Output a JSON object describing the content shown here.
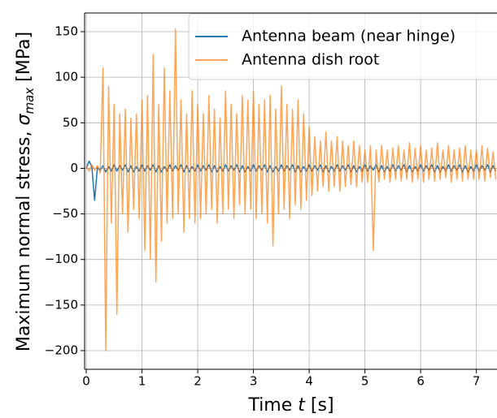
{
  "chart_data": {
    "type": "line",
    "xlabel": "Time ",
    "xlabel_symbol": "t",
    "xlabel_unit": " [s]",
    "ylabel": "Maximum normal stress, ",
    "ylabel_symbol": "σ",
    "ylabel_subscript": "max",
    "ylabel_unit": " [MPa]",
    "xlim": [
      -0.03,
      7.37
    ],
    "ylim": [
      -220.5,
      170.5
    ],
    "xticks": [
      0,
      1,
      2,
      3,
      4,
      5,
      6,
      7
    ],
    "yticks": [
      {
        "value": -200,
        "label": "−200"
      },
      {
        "value": -150,
        "label": "−150"
      },
      {
        "value": -100,
        "label": "−100"
      },
      {
        "value": -50,
        "label": "−50"
      },
      0,
      50,
      100,
      150
    ],
    "grid": true,
    "legend": "upper right",
    "x": [
      0,
      0.05,
      0.1,
      0.15,
      0.2,
      0.25,
      0.3,
      0.35,
      0.4,
      0.45,
      0.5,
      0.55,
      0.6,
      0.65,
      0.7,
      0.75,
      0.8,
      0.85,
      0.9,
      0.95,
      1,
      1.05,
      1.1,
      1.15,
      1.2,
      1.25,
      1.3,
      1.35,
      1.4,
      1.45,
      1.5,
      1.55,
      1.6,
      1.65,
      1.7,
      1.75,
      1.8,
      1.85,
      1.9,
      1.95,
      2,
      2.05,
      2.1,
      2.15,
      2.2,
      2.25,
      2.3,
      2.35,
      2.4,
      2.45,
      2.5,
      2.55,
      2.6,
      2.65,
      2.7,
      2.75,
      2.8,
      2.85,
      2.9,
      2.95,
      3,
      3.05,
      3.1,
      3.15,
      3.2,
      3.25,
      3.3,
      3.35,
      3.4,
      3.45,
      3.5,
      3.55,
      3.6,
      3.65,
      3.7,
      3.75,
      3.8,
      3.85,
      3.9,
      3.95,
      4,
      4.05,
      4.1,
      4.15,
      4.2,
      4.25,
      4.3,
      4.35,
      4.4,
      4.45,
      4.5,
      4.55,
      4.6,
      4.65,
      4.7,
      4.75,
      4.8,
      4.85,
      4.9,
      4.95,
      5,
      5.05,
      5.1,
      5.15,
      5.2,
      5.25,
      5.3,
      5.35,
      5.4,
      5.45,
      5.5,
      5.55,
      5.6,
      5.65,
      5.7,
      5.75,
      5.8,
      5.85,
      5.9,
      5.95,
      6,
      6.05,
      6.1,
      6.15,
      6.2,
      6.25,
      6.3,
      6.35,
      6.4,
      6.45,
      6.5,
      6.55,
      6.6,
      6.65,
      6.7,
      6.75,
      6.8,
      6.85,
      6.9,
      6.95,
      7,
      7.05,
      7.1,
      7.15,
      7.2,
      7.25,
      7.3,
      7.35
    ],
    "series": [
      {
        "name": "Antenna beam (near hinge)",
        "color": "#1f77b4",
        "values": [
          0,
          8,
          2,
          -35,
          1,
          -2,
          3,
          -4,
          2,
          -3,
          4,
          -3,
          3,
          -2,
          4,
          -4,
          3,
          -4,
          2,
          -3,
          4,
          -3,
          3,
          -2,
          4,
          -4,
          3,
          -4,
          2,
          -3,
          4,
          -3,
          3,
          -2,
          4,
          -4,
          3,
          -4,
          2,
          -3,
          4,
          -3,
          3,
          -2,
          4,
          -4,
          3,
          -4,
          2,
          -3,
          4,
          -3,
          3,
          -2,
          4,
          -4,
          3,
          -4,
          2,
          -3,
          4,
          -3,
          3,
          -2,
          4,
          -4,
          3,
          -4,
          2,
          -3,
          4,
          -3,
          3,
          -2,
          4,
          -4,
          3,
          -4,
          2,
          -3,
          4,
          -3,
          3,
          -2,
          4,
          -4,
          3,
          -4,
          2,
          -3,
          4,
          -3,
          3,
          -2,
          4,
          -4,
          3,
          -4,
          2,
          -3,
          4,
          -3,
          3,
          -2,
          4,
          -4,
          3,
          -4,
          2,
          -3,
          4,
          -3,
          3,
          -2,
          4,
          -4,
          3,
          -4,
          2,
          -3,
          4,
          -3,
          3,
          -2,
          4,
          -4,
          3,
          -4,
          2,
          -3,
          4,
          -3,
          3,
          -2,
          4,
          -4,
          3,
          -4,
          2,
          -3,
          4,
          -3,
          3,
          -2,
          4,
          -4,
          3,
          -3
        ]
      },
      {
        "name": "Antenna dish root",
        "color": "#ff7f0e",
        "values": [
          2,
          -3,
          4,
          -2,
          3,
          -5,
          110,
          -200,
          90,
          -60,
          70,
          -160,
          60,
          -50,
          65,
          -70,
          55,
          -45,
          60,
          -55,
          75,
          -90,
          80,
          -100,
          125,
          -125,
          70,
          -80,
          110,
          -60,
          85,
          -55,
          153,
          -50,
          75,
          -70,
          60,
          -55,
          85,
          -60,
          70,
          -55,
          60,
          -50,
          80,
          -45,
          65,
          -60,
          55,
          -50,
          85,
          -45,
          70,
          -55,
          60,
          -40,
          80,
          -50,
          75,
          -45,
          85,
          -55,
          70,
          -50,
          75,
          -60,
          80,
          -85,
          65,
          -50,
          90,
          -45,
          70,
          -55,
          65,
          -40,
          75,
          -45,
          60,
          -35,
          45,
          -30,
          35,
          -25,
          30,
          -20,
          40,
          -25,
          30,
          -20,
          35,
          -25,
          30,
          -20,
          25,
          -18,
          30,
          -20,
          25,
          -15,
          20,
          -15,
          25,
          -90,
          20,
          -15,
          25,
          -12,
          20,
          -15,
          22,
          -12,
          25,
          -14,
          20,
          -12,
          28,
          -15,
          22,
          -12,
          25,
          -15,
          20,
          -12,
          22,
          -14,
          28,
          -12,
          20,
          -10,
          25,
          -15,
          20,
          -12,
          22,
          -14,
          25,
          -12,
          20,
          -12,
          20,
          -12,
          25,
          -14,
          22,
          -10,
          18,
          -12
        ]
      }
    ]
  }
}
